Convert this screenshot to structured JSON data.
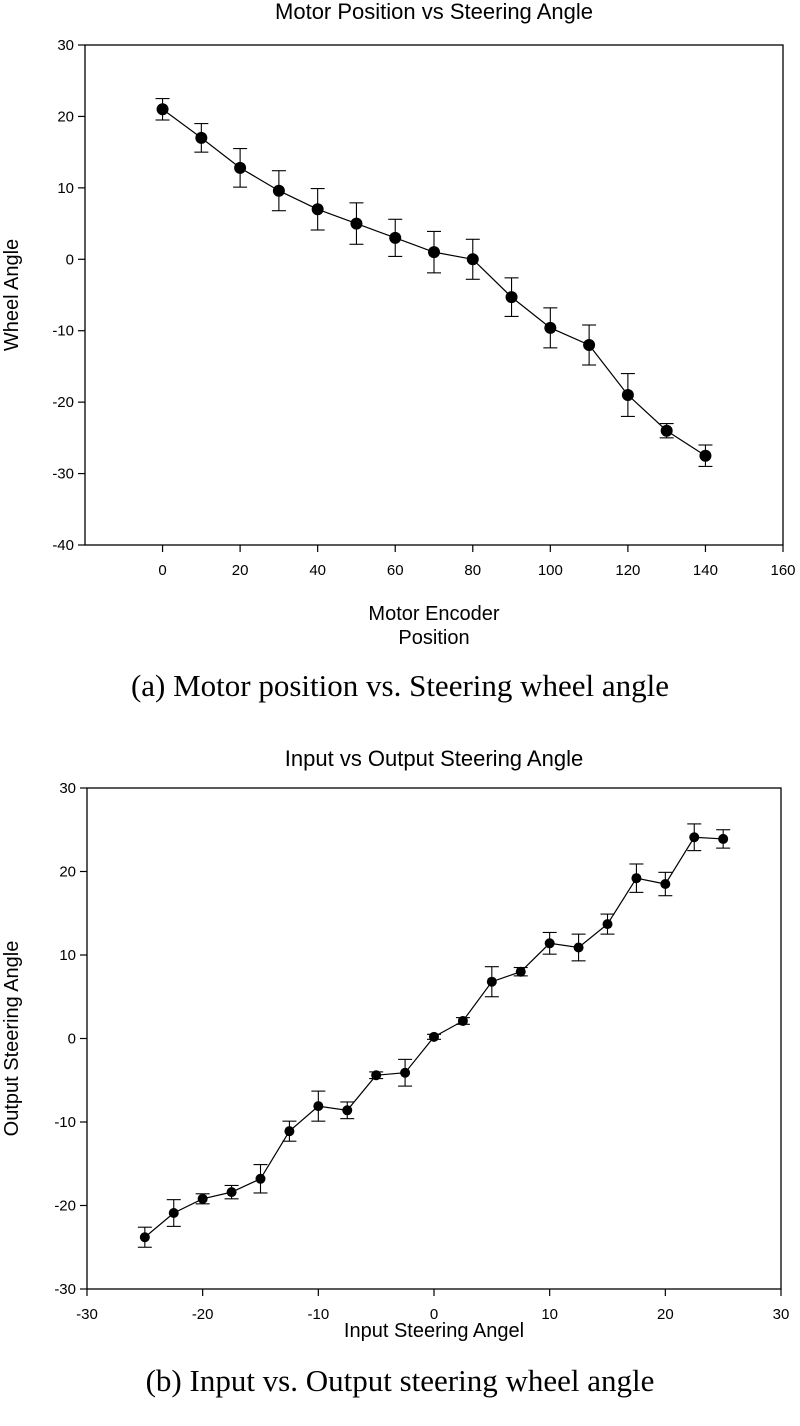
{
  "chart_data": [
    {
      "type": "line",
      "title": "Motor Position vs Steering Angle",
      "xlabel_lines": [
        "Motor Encoder",
        "Position"
      ],
      "ylabel": "Wheel Angle",
      "xlim": [
        -20,
        160
      ],
      "ylim": [
        -40,
        30
      ],
      "xticks": [
        0,
        20,
        40,
        60,
        80,
        100,
        120,
        140,
        160
      ],
      "yticks": [
        -40,
        -30,
        -20,
        -10,
        0,
        10,
        20,
        30
      ],
      "marker_size": 6,
      "series": [
        {
          "x": [
            0,
            10,
            20,
            30,
            40,
            50,
            60,
            70,
            80,
            90,
            100,
            110,
            120,
            130,
            140
          ],
          "y": [
            21,
            17,
            12.8,
            9.6,
            7,
            5,
            3,
            1,
            0,
            -5.3,
            -9.6,
            -12,
            -19,
            -24,
            -27.5
          ],
          "error": [
            1.5,
            2,
            2.7,
            2.8,
            2.9,
            2.9,
            2.6,
            2.9,
            2.8,
            2.7,
            2.8,
            2.8,
            3,
            1,
            1.5
          ]
        }
      ],
      "caption": "(a)  Motor position vs. Steering wheel angle"
    },
    {
      "type": "line",
      "title": "Input vs Output  Steering Angle",
      "xlabel": "Input Steering Angel",
      "ylabel": "Output Steering Angle",
      "xlim": [
        -30,
        30
      ],
      "ylim": [
        -30,
        30
      ],
      "xticks": [
        -30,
        -20,
        -10,
        0,
        10,
        20,
        30
      ],
      "yticks": [
        -30,
        -20,
        -10,
        0,
        10,
        20,
        30
      ],
      "marker_size": 5,
      "series": [
        {
          "x": [
            -25,
            -22.5,
            -20,
            -17.5,
            -15,
            -12.5,
            -10,
            -7.5,
            -5,
            -2.5,
            0,
            2.5,
            5,
            7.5,
            10,
            12.5,
            15,
            17.5,
            20,
            22.5,
            25
          ],
          "y": [
            -23.8,
            -20.9,
            -19.2,
            -18.4,
            -16.8,
            -11.1,
            -8.1,
            -8.6,
            -4.4,
            -4.1,
            0.2,
            2.1,
            6.8,
            8,
            11.4,
            10.9,
            13.7,
            19.2,
            18.5,
            24.1,
            23.9
          ],
          "error": [
            1.2,
            1.6,
            0.6,
            0.8,
            1.7,
            1.2,
            1.8,
            1,
            0.4,
            1.6,
            0.3,
            0.4,
            1.8,
            0.5,
            1.3,
            1.6,
            1.2,
            1.7,
            1.4,
            1.6,
            1.1
          ]
        }
      ],
      "caption": "(b)  Input  vs.  Output  steering  wheel  angle"
    }
  ]
}
